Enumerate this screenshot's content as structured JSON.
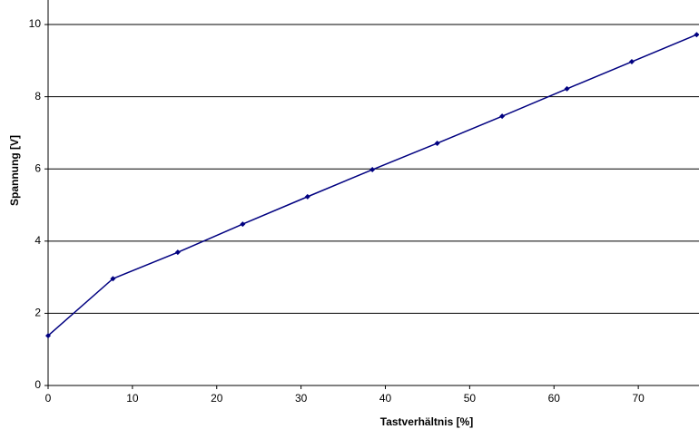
{
  "chart_data": {
    "type": "line",
    "x_label": "Tastverhältnis [%]",
    "y_label": "Spannung [V]",
    "x": [
      0,
      7.69,
      15.38,
      23.08,
      30.77,
      38.46,
      46.15,
      53.85,
      61.54,
      69.23,
      76.92
    ],
    "series": [
      {
        "color": "#000080",
        "values": [
          1.38,
          2.96,
          3.69,
          4.47,
          5.23,
          5.98,
          6.71,
          7.46,
          8.22,
          8.97,
          9.72
        ]
      }
    ],
    "xlim": [
      0,
      77.2
    ],
    "ylim": [
      0,
      10.68
    ],
    "xticks": [
      0,
      10,
      20,
      30,
      40,
      50,
      60,
      70
    ],
    "yticks": [
      0,
      2,
      4,
      6,
      8,
      10
    ],
    "grid": true
  }
}
